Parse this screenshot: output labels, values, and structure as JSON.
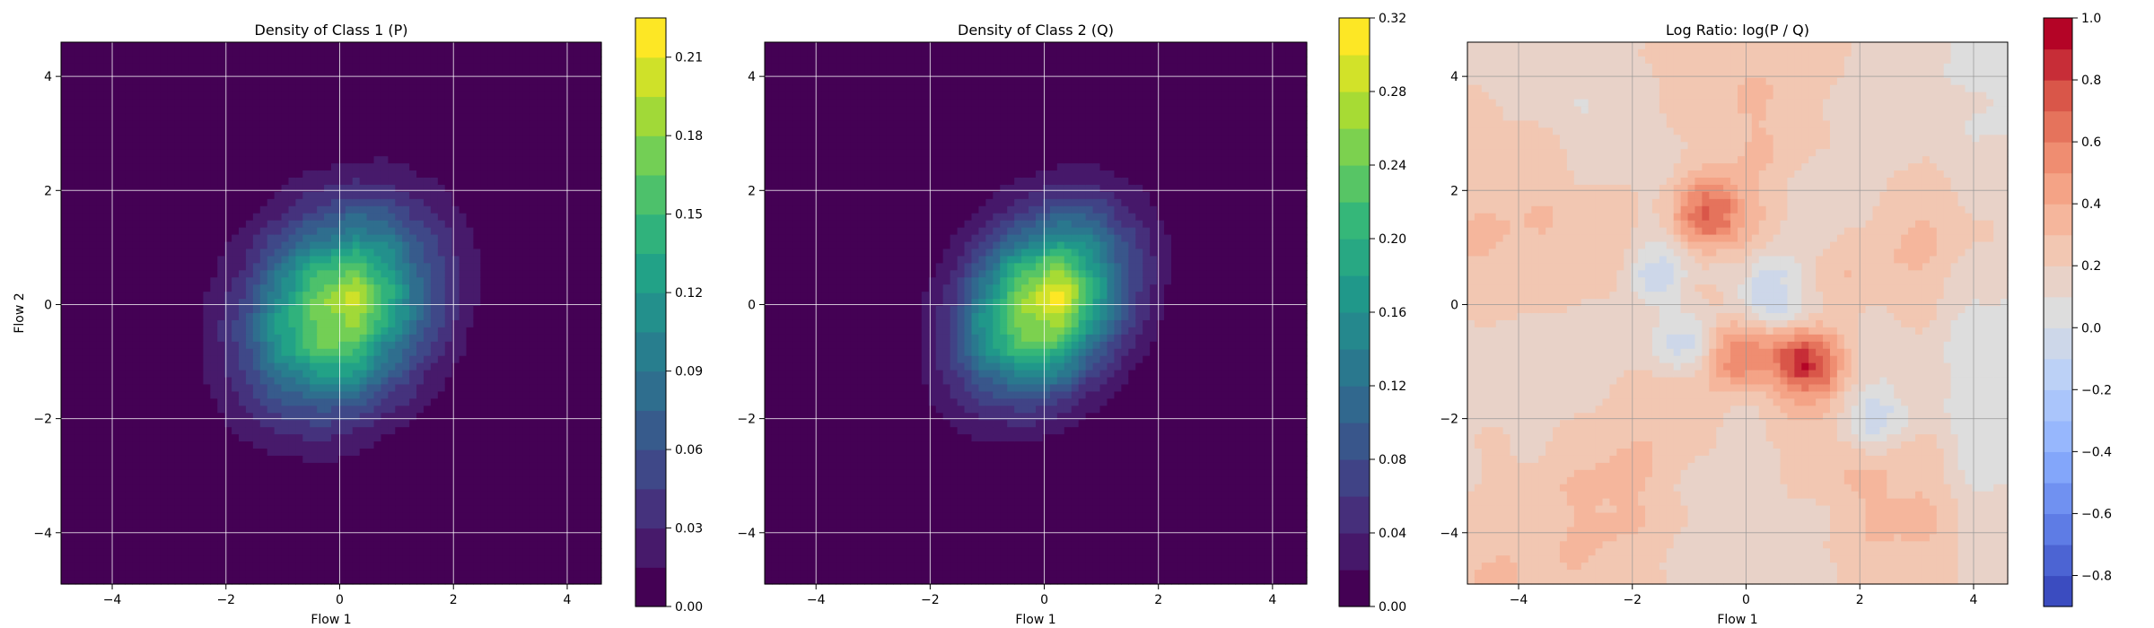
{
  "chart_data": [
    {
      "type": "heatmap",
      "title": "Density of Class 1 (P)",
      "xlabel": "Flow 1",
      "ylabel": "Flow 2",
      "xlim": [
        -4.9,
        4.6
      ],
      "ylim": [
        -4.9,
        4.6
      ],
      "xticks": [
        -4,
        -2,
        0,
        2,
        4
      ],
      "yticks": [
        -4,
        -2,
        0,
        2,
        4
      ],
      "grid": true,
      "colormap": "viridis",
      "colorbar": {
        "min": 0.0,
        "max": 0.225,
        "ticks": [
          "0.00",
          "0.03",
          "0.06",
          "0.09",
          "0.12",
          "0.15",
          "0.18",
          "0.21"
        ],
        "levels": 15
      },
      "density": {
        "mean": [
          0.0,
          -0.1
        ],
        "std": [
          1.0,
          1.25
        ],
        "rotation_deg": -35,
        "peak": 0.19
      }
    },
    {
      "type": "heatmap",
      "title": "Density of Class 2 (Q)",
      "xlabel": "Flow 1",
      "ylabel": "",
      "xlim": [
        -4.9,
        4.6
      ],
      "ylim": [
        -4.9,
        4.6
      ],
      "xticks": [
        -4,
        -2,
        0,
        2,
        4
      ],
      "yticks": [
        -4,
        -2,
        0,
        2,
        4
      ],
      "grid": true,
      "colormap": "viridis",
      "colorbar": {
        "min": 0.0,
        "max": 0.32,
        "ticks": [
          "0.00",
          "0.04",
          "0.08",
          "0.12",
          "0.16",
          "0.20",
          "0.24",
          "0.28",
          "0.32"
        ],
        "levels": 16
      },
      "density": {
        "mean": [
          0.0,
          0.0
        ],
        "std": [
          0.85,
          1.15
        ],
        "rotation_deg": -35,
        "peak": 0.29
      }
    },
    {
      "type": "heatmap",
      "title": "Log Ratio: log(P / Q)",
      "xlabel": "Flow 1",
      "ylabel": "",
      "xlim": [
        -4.9,
        4.6
      ],
      "ylim": [
        -4.9,
        4.6
      ],
      "xticks": [
        -4,
        -2,
        0,
        2,
        4
      ],
      "yticks": [
        -4,
        -2,
        0,
        2,
        4
      ],
      "grid": true,
      "colormap": "coolwarm",
      "colorbar": {
        "min": -0.9,
        "max": 1.0,
        "ticks": [
          "−0.8",
          "−0.6",
          "−0.4",
          "−0.2",
          "0.0",
          "0.2",
          "0.4",
          "0.6",
          "0.8",
          "1.0"
        ],
        "levels": 19
      },
      "features": [
        {
          "x": -0.7,
          "y": 1.6,
          "value": 0.65
        },
        {
          "x": 1.1,
          "y": -1.0,
          "value": 0.75
        },
        {
          "x": -0.2,
          "y": -0.9,
          "value": 0.55
        },
        {
          "x": 0.5,
          "y": 0.2,
          "value": -0.45
        },
        {
          "x": -1.6,
          "y": 0.6,
          "value": -0.4
        },
        {
          "x": -0.9,
          "y": -0.8,
          "value": -0.35
        },
        {
          "x": 2.2,
          "y": -2.0,
          "value": -0.35
        }
      ]
    }
  ]
}
